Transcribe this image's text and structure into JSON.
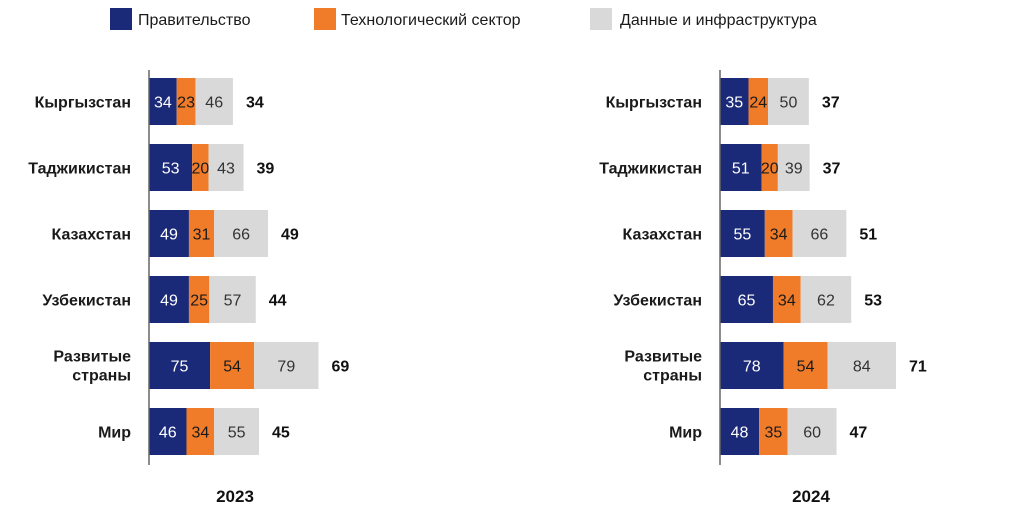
{
  "chart_data": {
    "type": "bar",
    "orientation": "horizontal",
    "stacked": true,
    "legend_position": "top",
    "colors": {
      "government": "#1b2a78",
      "tech": "#f07c2a",
      "data": "#d9d9d9",
      "axis": "#666666"
    },
    "series": [
      {
        "key": "government",
        "name": "Правительство"
      },
      {
        "key": "tech",
        "name": "Технологический сектор"
      },
      {
        "key": "data",
        "name": "Данные и инфраструктура"
      }
    ],
    "panels": [
      {
        "year": "2023",
        "rows": [
          {
            "country": [
              "Кыргызстан"
            ],
            "values": [
              34,
              23,
              46
            ],
            "total": 34
          },
          {
            "country": [
              "Таджикистан"
            ],
            "values": [
              53,
              20,
              43
            ],
            "total": 39
          },
          {
            "country": [
              "Казахстан"
            ],
            "values": [
              49,
              31,
              66
            ],
            "total": 49
          },
          {
            "country": [
              "Узбекистан"
            ],
            "values": [
              49,
              25,
              57
            ],
            "total": 44
          },
          {
            "country": [
              "Развитые",
              "страны"
            ],
            "values": [
              75,
              54,
              79
            ],
            "total": 69
          },
          {
            "country": [
              "Мир"
            ],
            "values": [
              46,
              34,
              55
            ],
            "total": 45
          }
        ]
      },
      {
        "year": "2024",
        "rows": [
          {
            "country": [
              "Кыргызстан"
            ],
            "values": [
              35,
              24,
              50
            ],
            "total": 37
          },
          {
            "country": [
              "Таджикистан"
            ],
            "values": [
              51,
              20,
              39
            ],
            "total": 37
          },
          {
            "country": [
              "Казахстан"
            ],
            "values": [
              55,
              34,
              66
            ],
            "total": 51
          },
          {
            "country": [
              "Узбекистан"
            ],
            "values": [
              65,
              34,
              62
            ],
            "total": 53
          },
          {
            "country": [
              "Развитые",
              "страны"
            ],
            "values": [
              78,
              54,
              84
            ],
            "total": 71
          },
          {
            "country": [
              "Мир"
            ],
            "values": [
              48,
              35,
              60
            ],
            "total": 47
          }
        ]
      }
    ]
  }
}
